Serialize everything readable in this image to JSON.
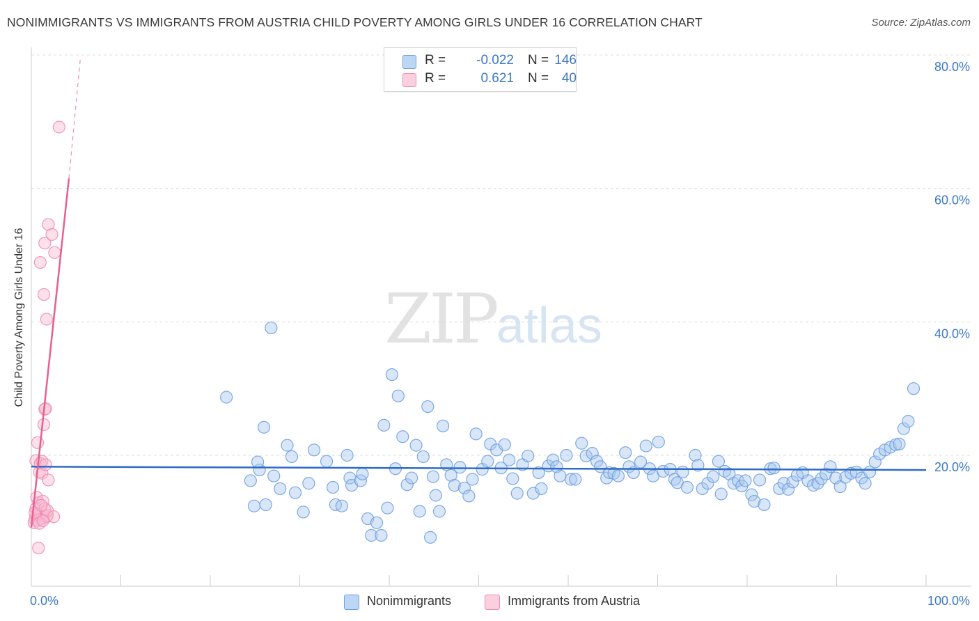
{
  "title": "NONIMMIGRANTS VS IMMIGRANTS FROM AUSTRIA CHILD POVERTY AMONG GIRLS UNDER 16 CORRELATION CHART",
  "source": "Source: ZipAtlas.com",
  "watermark": {
    "part1": "ZIP",
    "part2": "atlas"
  },
  "legend": {
    "rows": [
      {
        "r_label": "R =",
        "r_value": "-0.022",
        "n_label": "N =",
        "n_value": "146",
        "color": "#a8c8f0"
      },
      {
        "r_label": "R =",
        "r_value": "0.621",
        "n_label": "N =",
        "n_value": "40",
        "color": "#f8bcd0"
      }
    ]
  },
  "bottom_legend": {
    "items": [
      {
        "label": "Nonimmigrants",
        "color": "#a8c8f0"
      },
      {
        "label": "Immigrants from Austria",
        "color": "#f8bcd0"
      }
    ]
  },
  "chart_data": {
    "type": "scatter",
    "title": "NONIMMIGRANTS VS IMMIGRANTS FROM AUSTRIA CHILD POVERTY AMONG GIRLS UNDER 16 CORRELATION CHART",
    "xlabel": "",
    "ylabel": "Child Poverty Among Girls Under 16",
    "xlim": [
      0,
      100
    ],
    "ylim": [
      0,
      84
    ],
    "x_tick_labels": [
      "0.0%",
      "100.0%"
    ],
    "y_ticks": [
      20,
      40,
      60,
      80
    ],
    "y_tick_labels": [
      "20.0%",
      "40.0%",
      "60.0%",
      "80.0%"
    ],
    "grid": true,
    "series": [
      {
        "name": "Nonimmigrants",
        "color": "#6fa0e0",
        "fill": "#a8c8f0",
        "trend": {
          "x": [
            0,
            100
          ],
          "y": [
            18.3,
            17.8
          ],
          "color": "#2e6cc8"
        },
        "points": [
          [
            21.8,
            28.7
          ],
          [
            26.8,
            39.1
          ],
          [
            24.9,
            12.4
          ],
          [
            25.5,
            17.8
          ],
          [
            25.3,
            19.0
          ],
          [
            26.0,
            24.2
          ],
          [
            26.2,
            12.6
          ],
          [
            27.1,
            16.9
          ],
          [
            28.6,
            21.5
          ],
          [
            29.1,
            19.8
          ],
          [
            29.5,
            14.4
          ],
          [
            30.4,
            11.5
          ],
          [
            31.6,
            20.8
          ],
          [
            33.0,
            19.1
          ],
          [
            33.7,
            15.2
          ],
          [
            34.0,
            12.6
          ],
          [
            34.7,
            12.4
          ],
          [
            35.3,
            20.0
          ],
          [
            35.6,
            16.6
          ],
          [
            35.8,
            15.5
          ],
          [
            36.8,
            16.2
          ],
          [
            37.6,
            10.5
          ],
          [
            38.0,
            8.0
          ],
          [
            38.6,
            9.9
          ],
          [
            39.1,
            8.0
          ],
          [
            39.4,
            24.5
          ],
          [
            39.8,
            12.1
          ],
          [
            40.3,
            32.1
          ],
          [
            40.7,
            18.0
          ],
          [
            41.0,
            28.9
          ],
          [
            41.5,
            22.8
          ],
          [
            42.0,
            15.6
          ],
          [
            42.5,
            16.6
          ],
          [
            43.0,
            21.5
          ],
          [
            43.4,
            11.6
          ],
          [
            43.8,
            19.8
          ],
          [
            44.3,
            27.3
          ],
          [
            44.6,
            7.7
          ],
          [
            44.9,
            16.8
          ],
          [
            45.6,
            11.6
          ],
          [
            46.0,
            24.4
          ],
          [
            46.4,
            18.6
          ],
          [
            46.9,
            17.0
          ],
          [
            47.3,
            15.5
          ],
          [
            47.9,
            18.2
          ],
          [
            48.4,
            15.1
          ],
          [
            48.9,
            13.9
          ],
          [
            49.3,
            16.4
          ],
          [
            49.7,
            23.2
          ],
          [
            50.4,
            17.9
          ],
          [
            51.0,
            19.1
          ],
          [
            51.3,
            21.7
          ],
          [
            52.0,
            20.8
          ],
          [
            52.5,
            18.1
          ],
          [
            52.9,
            21.6
          ],
          [
            53.4,
            19.3
          ],
          [
            53.8,
            16.5
          ],
          [
            54.3,
            14.3
          ],
          [
            54.9,
            18.6
          ],
          [
            55.5,
            19.9
          ],
          [
            56.1,
            14.3
          ],
          [
            56.7,
            17.4
          ],
          [
            57.0,
            15.0
          ],
          [
            57.8,
            18.4
          ],
          [
            58.3,
            19.3
          ],
          [
            58.7,
            18.3
          ],
          [
            59.1,
            16.9
          ],
          [
            59.8,
            20.0
          ],
          [
            60.3,
            16.4
          ],
          [
            60.8,
            16.4
          ],
          [
            61.5,
            21.8
          ],
          [
            62.0,
            19.9
          ],
          [
            62.7,
            20.3
          ],
          [
            63.2,
            19.1
          ],
          [
            63.6,
            18.3
          ],
          [
            64.3,
            16.6
          ],
          [
            64.6,
            17.4
          ],
          [
            65.1,
            17.3
          ],
          [
            65.6,
            16.9
          ],
          [
            66.4,
            20.4
          ],
          [
            66.8,
            18.3
          ],
          [
            67.3,
            17.4
          ],
          [
            68.1,
            19.0
          ],
          [
            68.7,
            21.4
          ],
          [
            69.1,
            18.0
          ],
          [
            69.5,
            16.9
          ],
          [
            70.1,
            22.0
          ],
          [
            70.6,
            17.6
          ],
          [
            71.4,
            17.9
          ],
          [
            71.9,
            16.4
          ],
          [
            72.2,
            15.9
          ],
          [
            72.8,
            17.5
          ],
          [
            73.3,
            15.2
          ],
          [
            74.2,
            20.0
          ],
          [
            74.5,
            18.5
          ],
          [
            75.0,
            15.0
          ],
          [
            75.6,
            15.8
          ],
          [
            76.2,
            16.8
          ],
          [
            76.8,
            19.1
          ],
          [
            77.1,
            14.2
          ],
          [
            77.5,
            17.6
          ],
          [
            78.0,
            17.2
          ],
          [
            78.5,
            15.8
          ],
          [
            79.0,
            16.2
          ],
          [
            79.4,
            15.4
          ],
          [
            79.8,
            16.2
          ],
          [
            80.5,
            14.1
          ],
          [
            80.8,
            13.1
          ],
          [
            81.4,
            16.3
          ],
          [
            81.9,
            12.6
          ],
          [
            82.6,
            18.0
          ],
          [
            83.0,
            18.1
          ],
          [
            83.6,
            15.0
          ],
          [
            84.1,
            15.8
          ],
          [
            84.6,
            14.9
          ],
          [
            85.1,
            16.0
          ],
          [
            85.6,
            17.0
          ],
          [
            86.2,
            17.4
          ],
          [
            86.8,
            16.2
          ],
          [
            87.4,
            15.5
          ],
          [
            87.9,
            15.8
          ],
          [
            88.3,
            16.5
          ],
          [
            88.8,
            17.2
          ],
          [
            89.3,
            18.3
          ],
          [
            89.9,
            16.6
          ],
          [
            90.4,
            15.3
          ],
          [
            91.0,
            16.7
          ],
          [
            91.6,
            17.3
          ],
          [
            92.2,
            17.5
          ],
          [
            92.8,
            16.6
          ],
          [
            93.2,
            15.8
          ],
          [
            93.7,
            17.5
          ],
          [
            94.3,
            19.0
          ],
          [
            94.8,
            20.2
          ],
          [
            95.4,
            20.8
          ],
          [
            96.0,
            21.2
          ],
          [
            96.6,
            21.6
          ],
          [
            97.0,
            21.7
          ],
          [
            97.5,
            24.0
          ],
          [
            98.0,
            25.1
          ],
          [
            98.6,
            30.0
          ],
          [
            24.5,
            16.2
          ],
          [
            31.0,
            15.8
          ],
          [
            27.8,
            15.0
          ],
          [
            37.0,
            17.2
          ],
          [
            45.2,
            14.0
          ]
        ]
      },
      {
        "name": "Immigrants from Austria",
        "color": "#f08cb0",
        "fill": "#f8bcd0",
        "trend": {
          "x": [
            0,
            4.2
          ],
          "y": [
            9.2,
            61.5
          ],
          "dashed_to": [
            5.5,
            79.8
          ],
          "color": "#e8608c"
        },
        "points": [
          [
            0.4,
            10.4
          ],
          [
            0.5,
            12.0
          ],
          [
            0.6,
            11.1
          ],
          [
            0.7,
            10.2
          ],
          [
            0.8,
            12.9
          ],
          [
            0.6,
            13.7
          ],
          [
            0.9,
            17.5
          ],
          [
            0.5,
            19.2
          ],
          [
            1.0,
            18.8
          ],
          [
            0.7,
            21.9
          ],
          [
            1.0,
            11.0
          ],
          [
            1.1,
            10.5
          ],
          [
            1.3,
            13.1
          ],
          [
            1.2,
            17.3
          ],
          [
            1.2,
            19.1
          ],
          [
            1.4,
            10.6
          ],
          [
            1.5,
            12.0
          ],
          [
            1.6,
            18.6
          ],
          [
            1.4,
            24.6
          ],
          [
            1.5,
            26.9
          ],
          [
            1.6,
            27.0
          ],
          [
            1.7,
            10.8
          ],
          [
            1.8,
            11.0
          ],
          [
            1.8,
            11.7
          ],
          [
            1.9,
            16.3
          ],
          [
            1.0,
            48.9
          ],
          [
            1.4,
            44.1
          ],
          [
            1.5,
            51.8
          ],
          [
            1.7,
            40.4
          ],
          [
            1.9,
            54.6
          ],
          [
            2.3,
            53.1
          ],
          [
            2.6,
            50.4
          ],
          [
            3.1,
            69.2
          ],
          [
            0.8,
            6.1
          ],
          [
            2.5,
            10.8
          ],
          [
            0.3,
            9.9
          ],
          [
            0.4,
            11.4
          ],
          [
            1.1,
            12.5
          ],
          [
            0.9,
            9.8
          ],
          [
            1.3,
            10.2
          ]
        ]
      }
    ]
  }
}
